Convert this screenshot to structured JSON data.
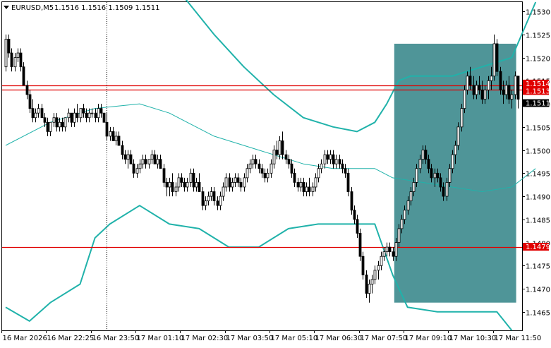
{
  "header": {
    "symbol": "EURUSD,M5",
    "ohlc": "1.1516 1.1516 1.1509 1.1511"
  },
  "colors": {
    "background": "#ffffff",
    "candle": "#000000",
    "band": "#20b2aa",
    "middle": "#20b2aa",
    "hline": "#e00000",
    "box": "#4f9598",
    "crosshair": "#000000"
  },
  "chart_data": {
    "type": "candlestick",
    "ylim": [
      1.1461,
      1.1532
    ],
    "y_ticks": [
      "1.1530",
      "1.1525",
      "1.1520",
      "1.1515",
      "1.1510",
      "1.1505",
      "1.1500",
      "1.1495",
      "1.1490",
      "1.1485",
      "1.1480",
      "1.1475",
      "1.1470",
      "1.1465"
    ],
    "x_ticks": [
      "16 Mar 2026",
      "16 Mar 22:25",
      "16 Mar 23:50",
      "17 Mar 01:10",
      "17 Mar 02:30",
      "17 Mar 03:50",
      "17 Mar 05:10",
      "17 Mar 06:30",
      "17 Mar 07:50",
      "17 Mar 09:10",
      "17 Mar 10:30",
      "17 Mar 11:50"
    ],
    "price_labels": [
      {
        "text": "1.1514",
        "bg": "#e00000",
        "fg": "#ffffff",
        "value": 1.1514
      },
      {
        "text": "1.1513",
        "bg": "#e00000",
        "fg": "#ffffff",
        "value": 1.1513
      },
      {
        "text": "1.1511",
        "bg": "#000000",
        "fg": "#ffffff",
        "value": 1.1511
      },
      {
        "text": "1.1479",
        "bg": "#e00000",
        "fg": "#ffffff",
        "value": 1.1479
      }
    ],
    "horizontal_lines": [
      1.1514,
      1.1513,
      1.1479
    ],
    "crosshair_index": 34,
    "box": {
      "from_index": 131,
      "to_index": 171,
      "price_low": 1.1467,
      "price_high": 1.1523
    },
    "candles": [
      [
        1.1518,
        1.1525,
        1.1517,
        1.1524
      ],
      [
        1.1524,
        1.1525,
        1.152,
        1.1521
      ],
      [
        1.1521,
        1.1522,
        1.1517,
        1.1518
      ],
      [
        1.1518,
        1.1521,
        1.1517,
        1.152
      ],
      [
        1.152,
        1.1522,
        1.1519,
        1.1521
      ],
      [
        1.1521,
        1.1522,
        1.1517,
        1.1518
      ],
      [
        1.1518,
        1.1519,
        1.1514,
        1.1514
      ],
      [
        1.1514,
        1.1515,
        1.1511,
        1.1512
      ],
      [
        1.1512,
        1.1513,
        1.1508,
        1.1509
      ],
      [
        1.1509,
        1.1511,
        1.1506,
        1.1507
      ],
      [
        1.1507,
        1.1509,
        1.1506,
        1.1508
      ],
      [
        1.1508,
        1.151,
        1.1507,
        1.1509
      ],
      [
        1.1509,
        1.151,
        1.1507,
        1.1507
      ],
      [
        1.1507,
        1.1508,
        1.1505,
        1.1506
      ],
      [
        1.1506,
        1.1507,
        1.1503,
        1.1504
      ],
      [
        1.1504,
        1.1506,
        1.1503,
        1.1506
      ],
      [
        1.1506,
        1.1508,
        1.1505,
        1.1507
      ],
      [
        1.1507,
        1.1508,
        1.1504,
        1.1505
      ],
      [
        1.1505,
        1.1507,
        1.1504,
        1.1506
      ],
      [
        1.1506,
        1.1507,
        1.1504,
        1.1505
      ],
      [
        1.1505,
        1.1507,
        1.1504,
        1.1507
      ],
      [
        1.1507,
        1.1509,
        1.1506,
        1.1508
      ],
      [
        1.1508,
        1.1508,
        1.1505,
        1.1506
      ],
      [
        1.1506,
        1.1509,
        1.1505,
        1.1508
      ],
      [
        1.1508,
        1.151,
        1.1506,
        1.1507
      ],
      [
        1.1507,
        1.1509,
        1.1506,
        1.1509
      ],
      [
        1.1509,
        1.151,
        1.1507,
        1.1508
      ],
      [
        1.1508,
        1.1509,
        1.1506,
        1.1507
      ],
      [
        1.1507,
        1.1509,
        1.1506,
        1.1508
      ],
      [
        1.1508,
        1.1509,
        1.1507,
        1.1508
      ],
      [
        1.1508,
        1.1509,
        1.1506,
        1.1507
      ],
      [
        1.1507,
        1.151,
        1.1506,
        1.1509
      ],
      [
        1.1509,
        1.151,
        1.1507,
        1.1508
      ],
      [
        1.1508,
        1.1508,
        1.1506,
        1.1506
      ],
      [
        1.1506,
        1.1508,
        1.1502,
        1.1503
      ],
      [
        1.1503,
        1.1505,
        1.1502,
        1.1504
      ],
      [
        1.1504,
        1.1505,
        1.1502,
        1.1502
      ],
      [
        1.1502,
        1.1504,
        1.1501,
        1.1503
      ],
      [
        1.1503,
        1.1504,
        1.1501,
        1.1501
      ],
      [
        1.1501,
        1.1502,
        1.1498,
        1.1499
      ],
      [
        1.1499,
        1.15,
        1.1497,
        1.1498
      ],
      [
        1.1498,
        1.15,
        1.1496,
        1.1499
      ],
      [
        1.1499,
        1.15,
        1.1497,
        1.1497
      ],
      [
        1.1497,
        1.1498,
        1.1494,
        1.1495
      ],
      [
        1.1495,
        1.1497,
        1.1494,
        1.1496
      ],
      [
        1.1496,
        1.1498,
        1.1495,
        1.1497
      ],
      [
        1.1497,
        1.1499,
        1.1496,
        1.1498
      ],
      [
        1.1498,
        1.1499,
        1.1496,
        1.1497
      ],
      [
        1.1497,
        1.1498,
        1.1496,
        1.1498
      ],
      [
        1.1498,
        1.15,
        1.1497,
        1.1499
      ],
      [
        1.1499,
        1.15,
        1.1497,
        1.1497
      ],
      [
        1.1497,
        1.1499,
        1.1496,
        1.1498
      ],
      [
        1.1498,
        1.1499,
        1.1496,
        1.1496
      ],
      [
        1.1496,
        1.1497,
        1.1492,
        1.1493
      ],
      [
        1.1493,
        1.1494,
        1.149,
        1.1492
      ],
      [
        1.1492,
        1.1494,
        1.149,
        1.1493
      ],
      [
        1.1493,
        1.1495,
        1.149,
        1.1491
      ],
      [
        1.1491,
        1.1493,
        1.149,
        1.1492
      ],
      [
        1.1492,
        1.1495,
        1.1491,
        1.1494
      ],
      [
        1.1494,
        1.1495,
        1.1492,
        1.1493
      ],
      [
        1.1493,
        1.1494,
        1.1491,
        1.1492
      ],
      [
        1.1492,
        1.1494,
        1.1491,
        1.1493
      ],
      [
        1.1493,
        1.1496,
        1.1492,
        1.1495
      ],
      [
        1.1495,
        1.1496,
        1.1491,
        1.1492
      ],
      [
        1.1492,
        1.1494,
        1.1491,
        1.1493
      ],
      [
        1.1493,
        1.1495,
        1.1491,
        1.1491
      ],
      [
        1.1491,
        1.1492,
        1.1487,
        1.1488
      ],
      [
        1.1488,
        1.149,
        1.1487,
        1.1489
      ],
      [
        1.1489,
        1.1491,
        1.1488,
        1.149
      ],
      [
        1.149,
        1.1492,
        1.1489,
        1.1491
      ],
      [
        1.1491,
        1.1492,
        1.1488,
        1.1489
      ],
      [
        1.1489,
        1.149,
        1.1487,
        1.1488
      ],
      [
        1.1488,
        1.1491,
        1.1487,
        1.149
      ],
      [
        1.149,
        1.1493,
        1.1489,
        1.1492
      ],
      [
        1.1492,
        1.1495,
        1.1491,
        1.1494
      ],
      [
        1.1494,
        1.1495,
        1.1491,
        1.1492
      ],
      [
        1.1492,
        1.1494,
        1.1491,
        1.1493
      ],
      [
        1.1493,
        1.1495,
        1.1492,
        1.1494
      ],
      [
        1.1494,
        1.1495,
        1.1492,
        1.1493
      ],
      [
        1.1493,
        1.1494,
        1.1491,
        1.1492
      ],
      [
        1.1492,
        1.1495,
        1.1491,
        1.1494
      ],
      [
        1.1494,
        1.1497,
        1.1493,
        1.1496
      ],
      [
        1.1496,
        1.1498,
        1.1495,
        1.1497
      ],
      [
        1.1497,
        1.1499,
        1.1496,
        1.1498
      ],
      [
        1.1498,
        1.1499,
        1.1496,
        1.1497
      ],
      [
        1.1497,
        1.1498,
        1.1495,
        1.1496
      ],
      [
        1.1496,
        1.1497,
        1.1494,
        1.1495
      ],
      [
        1.1495,
        1.1496,
        1.1493,
        1.1494
      ],
      [
        1.1494,
        1.1496,
        1.1493,
        1.1495
      ],
      [
        1.1495,
        1.1498,
        1.1494,
        1.1497
      ],
      [
        1.1497,
        1.1501,
        1.1496,
        1.15
      ],
      [
        1.15,
        1.1502,
        1.1498,
        1.1499
      ],
      [
        1.1499,
        1.1503,
        1.1498,
        1.1502
      ],
      [
        1.1502,
        1.1504,
        1.1498,
        1.1499
      ],
      [
        1.1499,
        1.15,
        1.1497,
        1.1498
      ],
      [
        1.1498,
        1.1499,
        1.1496,
        1.1497
      ],
      [
        1.1497,
        1.1498,
        1.1494,
        1.1495
      ],
      [
        1.1495,
        1.1496,
        1.1492,
        1.1493
      ],
      [
        1.1493,
        1.1494,
        1.1491,
        1.1492
      ],
      [
        1.1492,
        1.1494,
        1.1491,
        1.1493
      ],
      [
        1.1493,
        1.1494,
        1.149,
        1.1491
      ],
      [
        1.1491,
        1.1493,
        1.149,
        1.1492
      ],
      [
        1.1492,
        1.1494,
        1.149,
        1.1491
      ],
      [
        1.1491,
        1.1493,
        1.149,
        1.1492
      ],
      [
        1.1492,
        1.1495,
        1.1491,
        1.1494
      ],
      [
        1.1494,
        1.1497,
        1.1493,
        1.1496
      ],
      [
        1.1496,
        1.1498,
        1.1495,
        1.1497
      ],
      [
        1.1497,
        1.15,
        1.1496,
        1.1499
      ],
      [
        1.1499,
        1.15,
        1.1497,
        1.1498
      ],
      [
        1.1498,
        1.15,
        1.1497,
        1.1499
      ],
      [
        1.1499,
        1.15,
        1.1496,
        1.1497
      ],
      [
        1.1497,
        1.1499,
        1.1496,
        1.1498
      ],
      [
        1.1498,
        1.1499,
        1.1496,
        1.1497
      ],
      [
        1.1497,
        1.1498,
        1.1495,
        1.1496
      ],
      [
        1.1496,
        1.1497,
        1.1494,
        1.1495
      ],
      [
        1.1495,
        1.1496,
        1.149,
        1.1491
      ],
      [
        1.1491,
        1.1492,
        1.1486,
        1.1487
      ],
      [
        1.1487,
        1.1488,
        1.1484,
        1.1485
      ],
      [
        1.1485,
        1.1486,
        1.1481,
        1.1482
      ],
      [
        1.1482,
        1.1483,
        1.1476,
        1.1477
      ],
      [
        1.1477,
        1.1478,
        1.1472,
        1.1473
      ],
      [
        1.1473,
        1.1474,
        1.1468,
        1.1469
      ],
      [
        1.1469,
        1.1472,
        1.1467,
        1.1471
      ],
      [
        1.1471,
        1.1473,
        1.1469,
        1.1472
      ],
      [
        1.1472,
        1.1475,
        1.1471,
        1.1474
      ],
      [
        1.1474,
        1.1476,
        1.1472,
        1.1475
      ],
      [
        1.1475,
        1.1478,
        1.1474,
        1.1477
      ],
      [
        1.1477,
        1.1479,
        1.1476,
        1.1478
      ],
      [
        1.1478,
        1.148,
        1.1477,
        1.1479
      ],
      [
        1.1479,
        1.148,
        1.1477,
        1.1478
      ],
      [
        1.1478,
        1.1479,
        1.1476,
        1.1477
      ],
      [
        1.1477,
        1.1481,
        1.1476,
        1.148
      ],
      [
        1.148,
        1.1484,
        1.1479,
        1.1483
      ],
      [
        1.1483,
        1.1486,
        1.1482,
        1.1485
      ],
      [
        1.1485,
        1.1488,
        1.1484,
        1.1487
      ],
      [
        1.1487,
        1.149,
        1.1486,
        1.1489
      ],
      [
        1.1489,
        1.1492,
        1.1488,
        1.1491
      ],
      [
        1.1491,
        1.1494,
        1.149,
        1.1493
      ],
      [
        1.1493,
        1.1497,
        1.1492,
        1.1496
      ],
      [
        1.1496,
        1.1499,
        1.1495,
        1.1498
      ],
      [
        1.1498,
        1.1501,
        1.1497,
        1.15
      ],
      [
        1.15,
        1.1501,
        1.1497,
        1.1498
      ],
      [
        1.1498,
        1.1499,
        1.1495,
        1.1496
      ],
      [
        1.1496,
        1.1497,
        1.1493,
        1.1494
      ],
      [
        1.1494,
        1.1496,
        1.1492,
        1.1495
      ],
      [
        1.1495,
        1.1496,
        1.1493,
        1.1494
      ],
      [
        1.1494,
        1.1495,
        1.1491,
        1.1492
      ],
      [
        1.1492,
        1.1493,
        1.1489,
        1.149
      ],
      [
        1.149,
        1.1494,
        1.1489,
        1.1493
      ],
      [
        1.1493,
        1.1497,
        1.1492,
        1.1496
      ],
      [
        1.1496,
        1.15,
        1.1495,
        1.1499
      ],
      [
        1.1499,
        1.1502,
        1.1497,
        1.1501
      ],
      [
        1.1501,
        1.1506,
        1.15,
        1.1505
      ],
      [
        1.1505,
        1.151,
        1.1504,
        1.1509
      ],
      [
        1.1509,
        1.1514,
        1.1508,
        1.1513
      ],
      [
        1.1513,
        1.1517,
        1.1512,
        1.1516
      ],
      [
        1.1516,
        1.1518,
        1.1513,
        1.1514
      ],
      [
        1.1514,
        1.1516,
        1.1511,
        1.1512
      ],
      [
        1.1512,
        1.1515,
        1.1511,
        1.1514
      ],
      [
        1.1514,
        1.1516,
        1.1512,
        1.1513
      ],
      [
        1.1513,
        1.1515,
        1.151,
        1.1511
      ],
      [
        1.1511,
        1.1514,
        1.151,
        1.1513
      ],
      [
        1.1513,
        1.1516,
        1.1511,
        1.1515
      ],
      [
        1.1515,
        1.1518,
        1.1513,
        1.1516
      ],
      [
        1.1516,
        1.1525,
        1.1515,
        1.1523
      ],
      [
        1.1523,
        1.1524,
        1.1516,
        1.1517
      ],
      [
        1.1517,
        1.1518,
        1.1512,
        1.1513
      ],
      [
        1.1513,
        1.1515,
        1.151,
        1.1512
      ],
      [
        1.1512,
        1.1515,
        1.1511,
        1.1514
      ],
      [
        1.1514,
        1.1516,
        1.151,
        1.1511
      ],
      [
        1.1511,
        1.1513,
        1.1509,
        1.1512
      ],
      [
        1.1512,
        1.1517,
        1.1511,
        1.1516
      ],
      [
        1.1516,
        1.1516,
        1.1509,
        1.1511
      ]
    ],
    "bands": {
      "upper": [
        [
          0,
          1.1553
        ],
        [
          30,
          1.1553
        ],
        [
          45,
          1.1545
        ],
        [
          60,
          1.1533
        ],
        [
          70,
          1.1525
        ],
        [
          80,
          1.1518
        ],
        [
          90,
          1.1512
        ],
        [
          100,
          1.1507
        ],
        [
          110,
          1.1505
        ],
        [
          118,
          1.1504
        ],
        [
          124,
          1.1506
        ],
        [
          128,
          1.151
        ],
        [
          132,
          1.1515
        ],
        [
          136,
          1.1516
        ],
        [
          140,
          1.1516
        ],
        [
          150,
          1.1516
        ],
        [
          160,
          1.1518
        ],
        [
          170,
          1.152
        ],
        [
          178,
          1.1532
        ]
      ],
      "middle": [
        [
          0,
          1.1501
        ],
        [
          15,
          1.1506
        ],
        [
          30,
          1.1509
        ],
        [
          45,
          1.151
        ],
        [
          55,
          1.1508
        ],
        [
          70,
          1.1503
        ],
        [
          85,
          1.15
        ],
        [
          100,
          1.1497
        ],
        [
          110,
          1.1496
        ],
        [
          118,
          1.1496
        ],
        [
          124,
          1.1496
        ],
        [
          130,
          1.1494
        ],
        [
          140,
          1.1493
        ],
        [
          150,
          1.1492
        ],
        [
          160,
          1.1491
        ],
        [
          170,
          1.1492
        ],
        [
          178,
          1.1496
        ]
      ],
      "lower": [
        [
          0,
          1.1466
        ],
        [
          8,
          1.1463
        ],
        [
          15,
          1.1467
        ],
        [
          25,
          1.1471
        ],
        [
          30,
          1.1481
        ],
        [
          35,
          1.1484
        ],
        [
          45,
          1.1488
        ],
        [
          55,
          1.1484
        ],
        [
          65,
          1.1483
        ],
        [
          75,
          1.1479
        ],
        [
          85,
          1.1479
        ],
        [
          95,
          1.1483
        ],
        [
          105,
          1.1484
        ],
        [
          115,
          1.1484
        ],
        [
          124,
          1.1484
        ],
        [
          130,
          1.1473
        ],
        [
          135,
          1.1466
        ],
        [
          145,
          1.1465
        ],
        [
          155,
          1.1465
        ],
        [
          165,
          1.1465
        ],
        [
          170,
          1.1461
        ]
      ]
    }
  }
}
